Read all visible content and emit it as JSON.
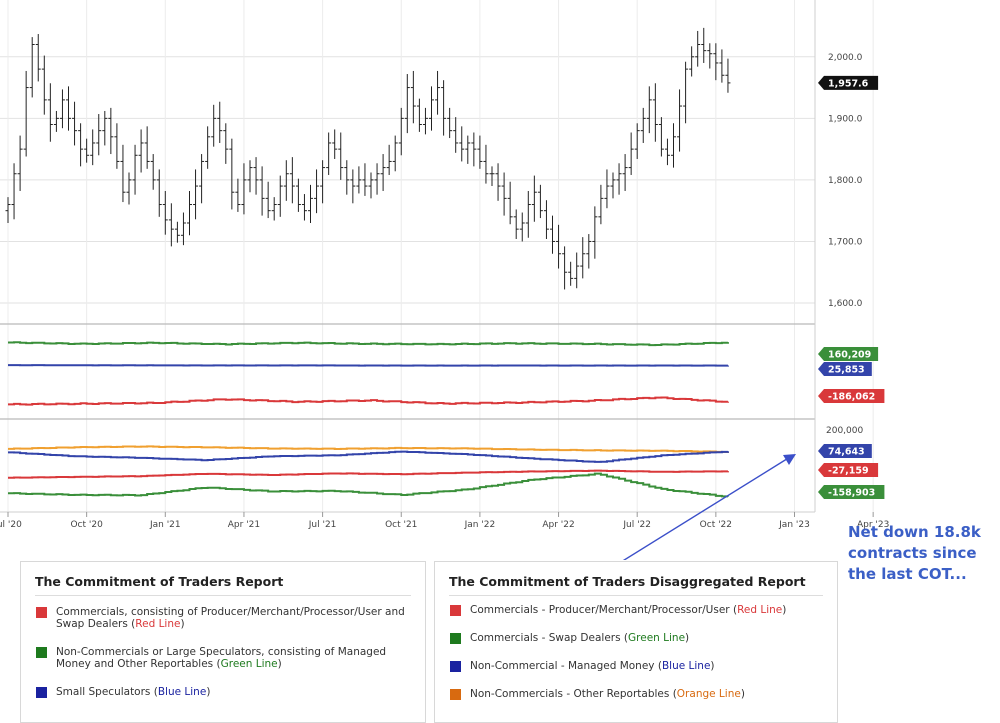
{
  "chart_data": [
    {
      "type": "ohlc",
      "price_ticks": [
        "2,000.0",
        "1,900.0",
        "1,800.0",
        "1,700.0",
        "1,600.0"
      ],
      "ylim": [
        1588,
        2110
      ],
      "last_price": "1,957.6",
      "x_ticks": [
        "Jul '20",
        "Oct '20",
        "Jan '21",
        "Apr '21",
        "Jul '21",
        "Oct '21",
        "Jan '22",
        "Apr '22",
        "Jul '22",
        "Oct '22",
        "Jan '23",
        "Apr '23"
      ],
      "x_ticks_note": "weekly bars, x index 0 = Jul '20, 13 bars per quarter",
      "closes": [
        1760,
        1810,
        1850,
        1950,
        2020,
        1980,
        1930,
        1890,
        1900,
        1930,
        1900,
        1880,
        1850,
        1840,
        1860,
        1880,
        1900,
        1870,
        1830,
        1780,
        1800,
        1840,
        1860,
        1830,
        1800,
        1760,
        1735,
        1720,
        1710,
        1730,
        1760,
        1790,
        1830,
        1870,
        1900,
        1880,
        1850,
        1780,
        1760,
        1800,
        1820,
        1800,
        1770,
        1750,
        1760,
        1790,
        1810,
        1790,
        1760,
        1750,
        1770,
        1790,
        1820,
        1860,
        1850,
        1820,
        1800,
        1790,
        1800,
        1790,
        1800,
        1810,
        1820,
        1830,
        1860,
        1900,
        1950,
        1920,
        1890,
        1900,
        1930,
        1950,
        1900,
        1880,
        1860,
        1850,
        1860,
        1850,
        1830,
        1810,
        1810,
        1790,
        1770,
        1740,
        1720,
        1730,
        1760,
        1780,
        1750,
        1720,
        1700,
        1680,
        1650,
        1640,
        1660,
        1680,
        1700,
        1740,
        1770,
        1790,
        1800,
        1810,
        1820,
        1850,
        1880,
        1900,
        1930,
        1890,
        1850,
        1840,
        1870,
        1920,
        1980,
        2000,
        2020,
        2010,
        2005,
        1990,
        1970,
        1957.6
      ]
    },
    {
      "type": "line",
      "value_labels": [
        "160,209",
        "25,853",
        "-186,062"
      ],
      "series": [
        {
          "color": "#3a8f3a",
          "values": [
            160209,
            152000,
            158000,
            150000,
            158000,
            152000,
            150000,
            155000,
            152000,
            146000,
            160209
          ]
        },
        {
          "color": "#3344aa",
          "values": [
            28000,
            27500,
            27000,
            26500,
            26800,
            26000,
            25500,
            26200,
            25800,
            26000,
            25853
          ]
        },
        {
          "color": "#d9383a",
          "values": [
            -200000,
            -196000,
            -192000,
            -170000,
            -185000,
            -177000,
            -195000,
            -190000,
            -180000,
            -160000,
            -186062
          ]
        }
      ]
    },
    {
      "type": "line",
      "y_ticks": [
        "200,000"
      ],
      "value_labels": [
        "74,643",
        "-27,159",
        "-158,903"
      ],
      "series": [
        {
          "color": "#f0a030",
          "values": [
            88000,
            96000,
            100000,
            96000,
            90000,
            88000,
            92000,
            90000,
            84000,
            80000,
            78000,
            72000
          ]
        },
        {
          "color": "#3344aa",
          "values": [
            70000,
            50000,
            42000,
            30000,
            50000,
            55000,
            74000,
            60000,
            38000,
            20000,
            55000,
            74643
          ]
        },
        {
          "color": "#d9383a",
          "values": [
            -60000,
            -56000,
            -52000,
            -40000,
            -46000,
            -38000,
            -42000,
            -34000,
            -28000,
            -24000,
            -30000,
            -27159
          ]
        },
        {
          "color": "#3a8f3a",
          "values": [
            -140000,
            -148000,
            -150000,
            -110000,
            -130000,
            -128000,
            -148000,
            -120000,
            -70000,
            -40000,
            -120000,
            -158903
          ]
        }
      ]
    }
  ],
  "annotation": {
    "text": "Net down 18.8k contracts since the last COT..."
  },
  "legend1": {
    "title": "The Commitment of Traders Report",
    "items": [
      {
        "color": "#d9383a",
        "text": "Commercials, consisting of Producer/Merchant/Processor/User and Swap Dealers (",
        "colored": "Red Line",
        "tail": ")"
      },
      {
        "color": "#1e7a1e",
        "text": "Non-Commercials or Large Speculators, consisting of Managed Money and Other Reportables (",
        "colored": "Green Line",
        "tail": ")"
      },
      {
        "color": "#1a22a0",
        "text": "Small Speculators (",
        "colored": "Blue Line",
        "tail": ")"
      }
    ]
  },
  "legend2": {
    "title": "The Commitment of Traders Disaggregated Report",
    "items": [
      {
        "color": "#d9383a",
        "text": "Commercials - Producer/Merchant/Processor/User (",
        "colored": "Red Line",
        "tail": ")"
      },
      {
        "color": "#1e7a1e",
        "text": "Commercials - Swap Dealers (",
        "colored": "Green Line",
        "tail": ")"
      },
      {
        "color": "#1a22a0",
        "text": "Non-Commercial - Managed Money (",
        "colored": "Blue Line",
        "tail": ")"
      },
      {
        "color": "#d86a10",
        "text": "Non-Commercials - Other Reportables (",
        "colored": "Orange Line",
        "tail": ")"
      }
    ]
  }
}
